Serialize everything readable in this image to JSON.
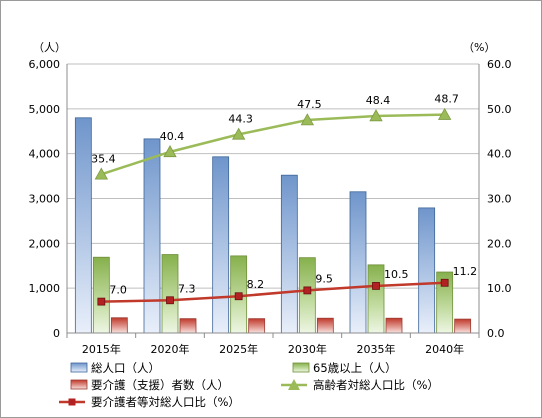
{
  "chart_data": {
    "type": "bar",
    "categories": [
      "2015年",
      "2020年",
      "2025年",
      "2030年",
      "2035年",
      "2040年"
    ],
    "y_left": {
      "unit": "（人）",
      "lim": [
        0,
        6000
      ],
      "ticks": [
        "0",
        "1,000",
        "2,000",
        "3,000",
        "4,000",
        "5,000",
        "6,000"
      ]
    },
    "y_right": {
      "unit": "（%）",
      "lim": [
        0,
        60
      ],
      "ticks": [
        "0.0",
        "10.0",
        "20.0",
        "30.0",
        "40.0",
        "50.0",
        "60.0"
      ]
    },
    "series": [
      {
        "name": "総人口（人）",
        "type": "bar",
        "axis": "left",
        "color": "#4f81bd",
        "values": [
          4800,
          4330,
          3930,
          3520,
          3150,
          2790
        ]
      },
      {
        "name": "65歳以上（人）",
        "type": "bar",
        "axis": "left",
        "color": "#9bbb59",
        "values": [
          1690,
          1750,
          1720,
          1680,
          1520,
          1360
        ]
      },
      {
        "name": "要介護（支援）者数（人）",
        "type": "bar",
        "axis": "left",
        "color": "#c0504d",
        "values": [
          340,
          320,
          320,
          330,
          330,
          310
        ]
      },
      {
        "name": "高齢者対総人口比（%）",
        "type": "line",
        "axis": "right",
        "color": "#9bbb59",
        "marker": "triangle",
        "values": [
          35.4,
          40.4,
          44.3,
          47.5,
          48.4,
          48.7
        ],
        "labels": [
          "35.4",
          "40.4",
          "44.3",
          "47.5",
          "48.4",
          "48.7"
        ]
      },
      {
        "name": "要介護者等対総人口比（%）",
        "type": "line",
        "axis": "right",
        "color": "#c0504d",
        "marker": "square",
        "values": [
          7.0,
          7.3,
          8.2,
          9.5,
          10.5,
          11.2
        ],
        "labels": [
          "7.0",
          "7.3",
          "8.2",
          "9.5",
          "10.5",
          "11.2"
        ]
      }
    ],
    "grid": true,
    "legend_position": "bottom"
  }
}
